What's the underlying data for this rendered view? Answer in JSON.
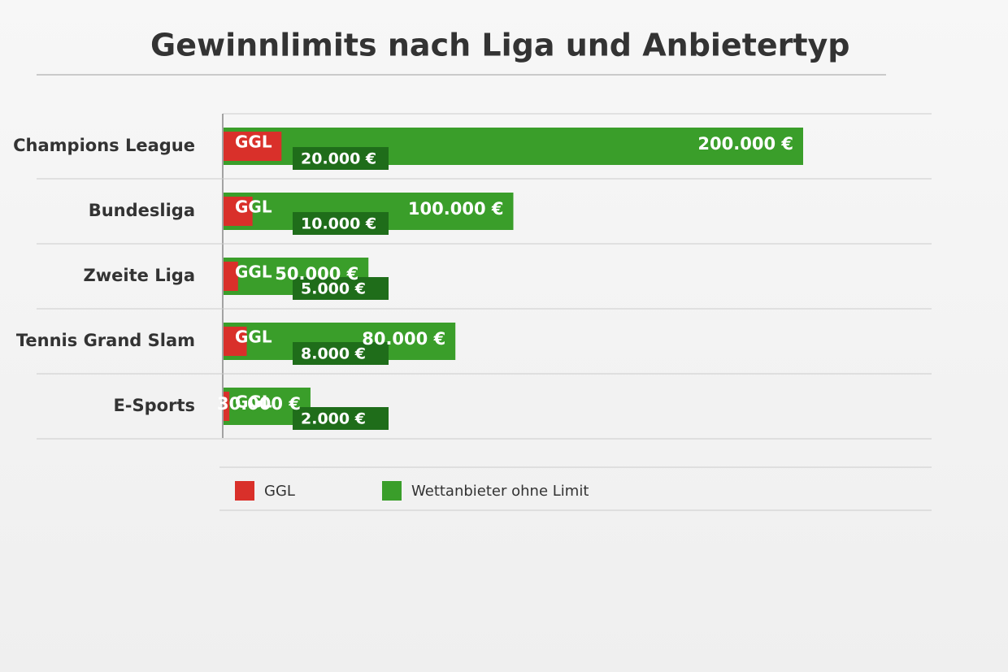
{
  "chart_data": {
    "type": "hbar",
    "title": "Gewinnlimits nach Liga und Anbietertyp",
    "categories": [
      "Champions League",
      "Bundesliga",
      "Zweite Liga",
      "Tennis Grand Slam",
      "E-Sports"
    ],
    "series": [
      {
        "name": "GGL",
        "color": "#d9302a",
        "values": [
          20000,
          10000,
          5000,
          8000,
          2000
        ],
        "value_labels": [
          "20.000 €",
          "10.000 €",
          "5.000 €",
          "8.000 €",
          "2.000 €"
        ]
      },
      {
        "name": "Wettanbieter ohne Limit",
        "color": "#3a9e2a",
        "values": [
          200000,
          100000,
          50000,
          80000,
          30000
        ],
        "value_labels": [
          "200.000 €",
          "100.000 €",
          "50.000 €",
          "80.000 €",
          "30.000 €"
        ]
      }
    ]
  }
}
